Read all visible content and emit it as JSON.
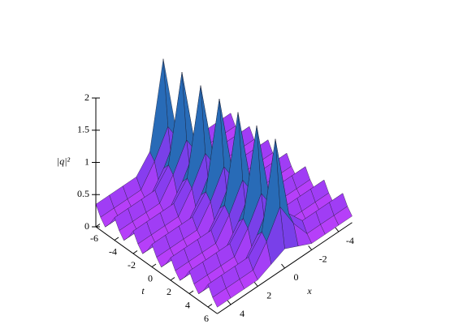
{
  "chart_data": {
    "type": "surface",
    "zlabel": "|q|²",
    "tlabel": "t",
    "xlabel": "x",
    "tlim": [
      -6,
      7
    ],
    "xlim": [
      -5,
      5
    ],
    "zlim": [
      0,
      2
    ],
    "tticks": [
      -6,
      -4,
      -2,
      0,
      2,
      4,
      6
    ],
    "xticks": [
      -4,
      -2,
      0,
      2,
      4
    ],
    "zticks": [
      0,
      0.5,
      1,
      1.5,
      2
    ],
    "colormap": [
      "#d040ff",
      "#8a3cf0",
      "#2f4fc8",
      "#1f8fa0",
      "#30b060",
      "#c8c020"
    ],
    "t": [
      -6,
      -5.5,
      -5,
      -4.5,
      -4,
      -3.5,
      -3,
      -2.5,
      -2,
      -1.5,
      -1,
      -0.5,
      0,
      0.5,
      1,
      1.5,
      2,
      2.5,
      3,
      3.5,
      4,
      4.5,
      5,
      5.5,
      6,
      6.5,
      7
    ],
    "x": [
      -5,
      -4,
      -3,
      -2,
      -1,
      0,
      1,
      2,
      3,
      4,
      5
    ],
    "z": [
      [
        0.35,
        0.35,
        0.35,
        0.35,
        0.6,
        1.9,
        0.6,
        0.35,
        0.35,
        0.35,
        0.35
      ],
      [
        0.2,
        0.2,
        0.2,
        0.2,
        0.5,
        0.9,
        0.5,
        0.2,
        0.2,
        0.2,
        0.2
      ],
      [
        0.1,
        0.1,
        0.1,
        0.1,
        0.2,
        0.3,
        0.2,
        0.1,
        0.1,
        0.1,
        0.1
      ],
      [
        0.2,
        0.2,
        0.2,
        0.2,
        0.5,
        0.9,
        0.5,
        0.2,
        0.2,
        0.2,
        0.2
      ],
      [
        0.35,
        0.35,
        0.35,
        0.35,
        0.6,
        1.9,
        0.6,
        0.35,
        0.35,
        0.35,
        0.35
      ],
      [
        0.2,
        0.2,
        0.2,
        0.2,
        0.5,
        0.9,
        0.5,
        0.2,
        0.2,
        0.2,
        0.2
      ],
      [
        0.1,
        0.1,
        0.1,
        0.1,
        0.2,
        0.3,
        0.2,
        0.1,
        0.1,
        0.1,
        0.1
      ],
      [
        0.2,
        0.2,
        0.2,
        0.2,
        0.5,
        0.9,
        0.5,
        0.2,
        0.2,
        0.2,
        0.2
      ],
      [
        0.35,
        0.35,
        0.35,
        0.35,
        0.6,
        1.9,
        0.6,
        0.35,
        0.35,
        0.35,
        0.35
      ],
      [
        0.2,
        0.2,
        0.2,
        0.2,
        0.5,
        0.9,
        0.5,
        0.2,
        0.2,
        0.2,
        0.2
      ],
      [
        0.1,
        0.1,
        0.1,
        0.1,
        0.2,
        0.3,
        0.2,
        0.1,
        0.1,
        0.1,
        0.1
      ],
      [
        0.2,
        0.2,
        0.2,
        0.2,
        0.5,
        0.9,
        0.5,
        0.2,
        0.2,
        0.2,
        0.2
      ],
      [
        0.35,
        0.35,
        0.35,
        0.35,
        0.6,
        1.9,
        0.6,
        0.35,
        0.35,
        0.35,
        0.35
      ],
      [
        0.2,
        0.2,
        0.2,
        0.2,
        0.5,
        0.9,
        0.5,
        0.2,
        0.2,
        0.2,
        0.2
      ],
      [
        0.1,
        0.1,
        0.1,
        0.1,
        0.2,
        0.3,
        0.2,
        0.1,
        0.1,
        0.1,
        0.1
      ],
      [
        0.2,
        0.2,
        0.2,
        0.2,
        0.5,
        0.9,
        0.5,
        0.2,
        0.2,
        0.2,
        0.2
      ],
      [
        0.35,
        0.35,
        0.35,
        0.35,
        0.6,
        1.9,
        0.6,
        0.35,
        0.35,
        0.35,
        0.35
      ],
      [
        0.2,
        0.2,
        0.2,
        0.2,
        0.5,
        0.9,
        0.5,
        0.2,
        0.2,
        0.2,
        0.2
      ],
      [
        0.1,
        0.1,
        0.1,
        0.1,
        0.2,
        0.3,
        0.2,
        0.1,
        0.1,
        0.1,
        0.1
      ],
      [
        0.2,
        0.2,
        0.2,
        0.2,
        0.5,
        0.9,
        0.5,
        0.2,
        0.2,
        0.2,
        0.2
      ],
      [
        0.35,
        0.35,
        0.35,
        0.35,
        0.6,
        1.9,
        0.6,
        0.35,
        0.35,
        0.35,
        0.35
      ],
      [
        0.2,
        0.2,
        0.2,
        0.2,
        0.5,
        0.9,
        0.5,
        0.2,
        0.2,
        0.2,
        0.2
      ],
      [
        0.1,
        0.1,
        0.1,
        0.1,
        0.2,
        0.3,
        0.2,
        0.1,
        0.1,
        0.1,
        0.1
      ],
      [
        0.2,
        0.2,
        0.2,
        0.2,
        0.5,
        0.9,
        0.5,
        0.2,
        0.2,
        0.2,
        0.2
      ],
      [
        0.35,
        0.35,
        0.35,
        0.35,
        0.6,
        1.9,
        0.6,
        0.35,
        0.35,
        0.35,
        0.35
      ],
      [
        0.2,
        0.2,
        0.2,
        0.2,
        0.5,
        0.9,
        0.5,
        0.2,
        0.2,
        0.2,
        0.2
      ],
      [
        0.1,
        0.1,
        0.1,
        0.1,
        0.2,
        0.3,
        0.2,
        0.1,
        0.1,
        0.1,
        0.1
      ]
    ]
  }
}
